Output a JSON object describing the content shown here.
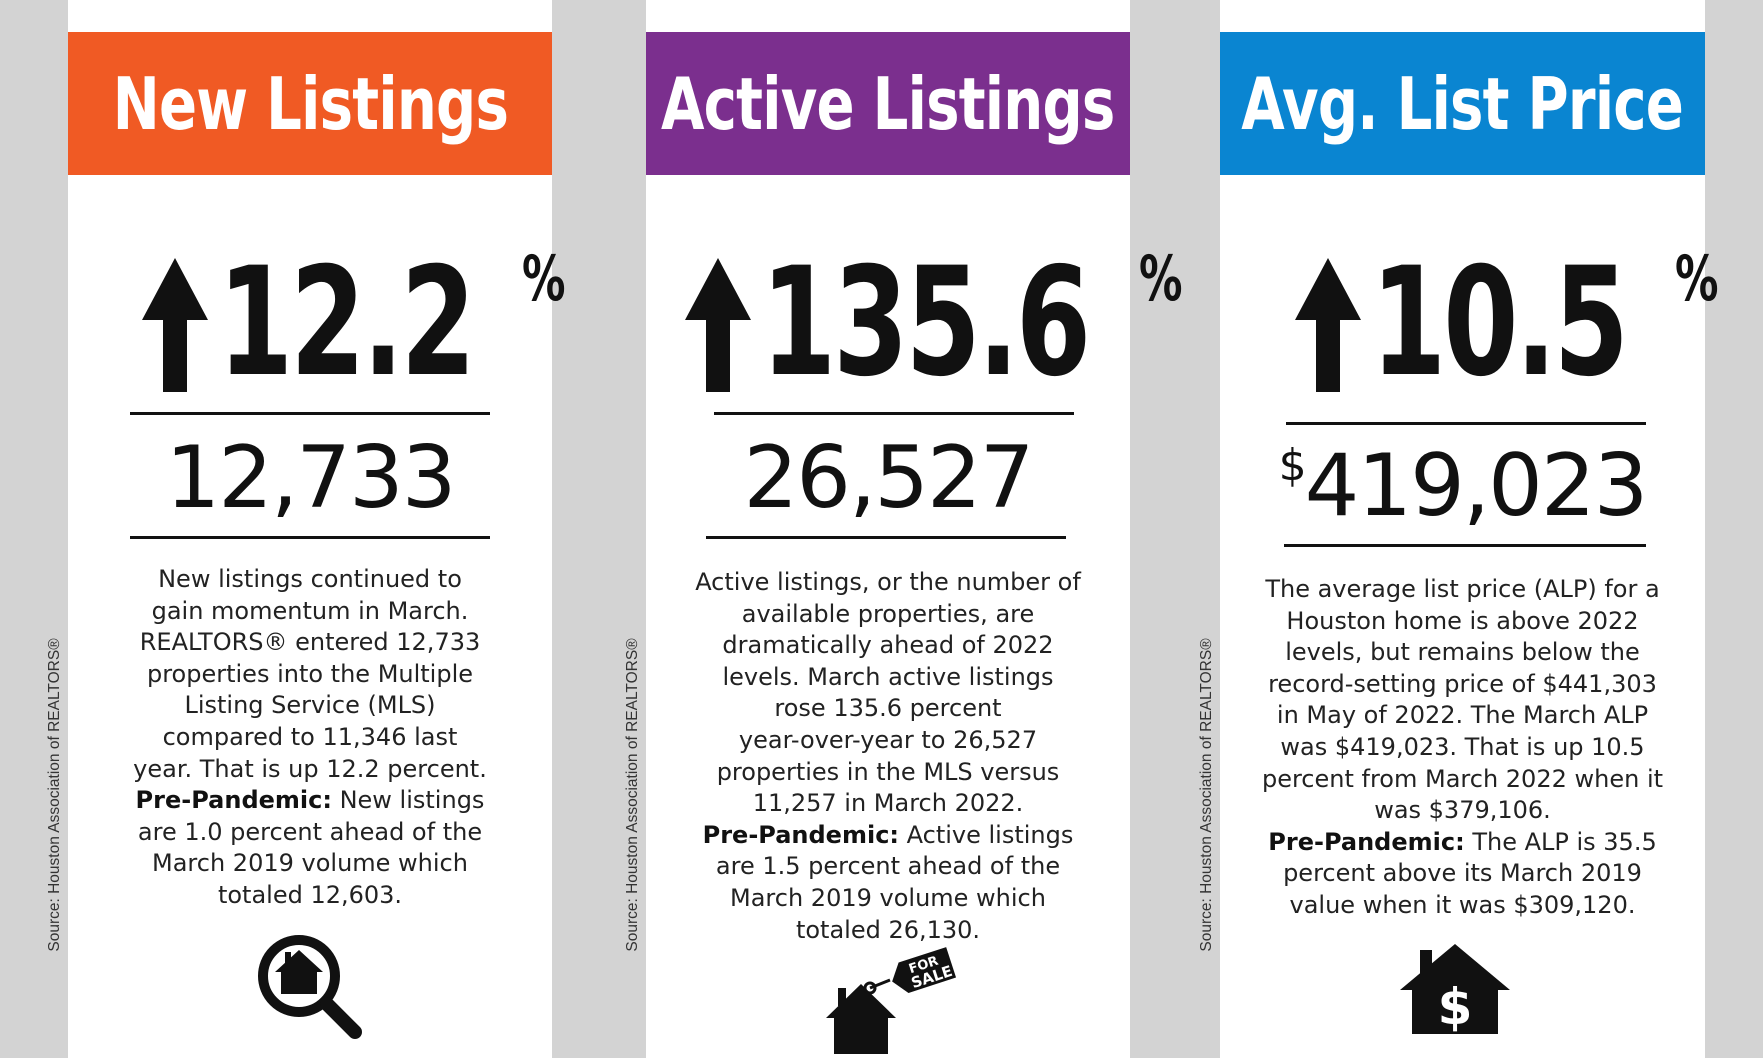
{
  "colors": {
    "new_listings": "#f05a24",
    "active_listings": "#7b2f8e",
    "avg_list_price": "#0a85d1"
  },
  "source_text": "Source: Houston Association of REALTORS®",
  "panels": [
    {
      "title": "New Listings",
      "percent": "12.2",
      "percent_sign": "%",
      "value": "12,733",
      "desc_lines": [
        "New listings continued to",
        "gain momentum in March.",
        "REALTORS® entered 12,733",
        "properties into the Multiple",
        "Listing Service (MLS)",
        "compared to 11,346 last",
        "year. That is up 12.2 percent."
      ],
      "prepandemic_label": "Pre-Pandemic:",
      "prepandemic_first": " New listings",
      "prepandemic_lines": [
        "are 1.0 percent ahead of the",
        "March 2019 volume which",
        "totaled 12,603."
      ],
      "icon": "home-search-icon"
    },
    {
      "title": "Active Listings",
      "percent": "135.6",
      "percent_sign": "%",
      "value": "26,527",
      "desc_lines": [
        "Active listings, or the number of",
        "available properties, are",
        "dramatically ahead of 2022",
        "levels. March active listings",
        "rose 135.6 percent",
        "year-over-year to 26,527",
        "properties in the MLS versus",
        "11,257 in March 2022."
      ],
      "prepandemic_label": "Pre-Pandemic:",
      "prepandemic_first": " Active listings",
      "prepandemic_lines": [
        "are 1.5 percent ahead of the",
        "March 2019 volume which",
        "totaled 26,130."
      ],
      "icon": "house-for-sale-icon",
      "sign_text_1": "FOR",
      "sign_text_2": "SALE"
    },
    {
      "title": "Avg. List Price",
      "percent": "10.5",
      "percent_sign": "%",
      "currency": "$",
      "value": "419,023",
      "desc_lines": [
        "The average list price (ALP) for a",
        "Houston home is above 2022",
        "levels, but remains below the",
        "record-setting price of $441,303",
        "in May of 2022. The March ALP",
        "was $419,023. That is up 10.5",
        "percent from March 2022 when it",
        "was $379,106."
      ],
      "prepandemic_label": "Pre-Pandemic:",
      "prepandemic_first": " The ALP is 35.5",
      "prepandemic_lines": [
        "percent above its March 2019",
        "value when it was $309,120."
      ],
      "icon": "house-dollar-icon"
    }
  ]
}
